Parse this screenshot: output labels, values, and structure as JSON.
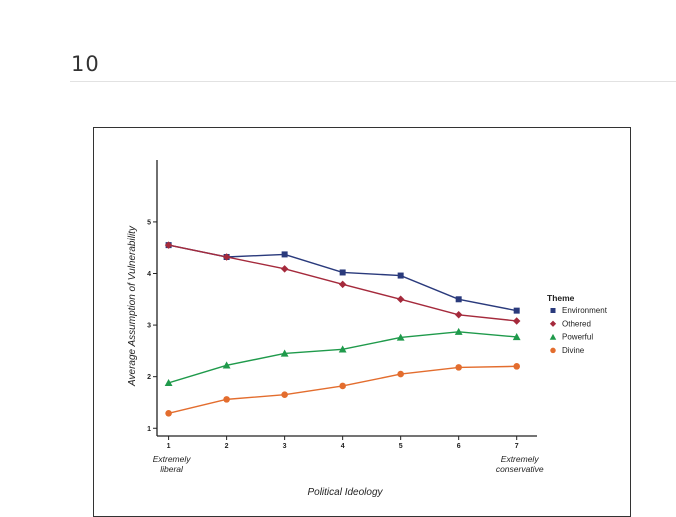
{
  "page": {
    "number": "10"
  },
  "chart_data": {
    "type": "line",
    "title": "",
    "xlabel": "Political Ideology",
    "ylabel": "Average Assumption of Vulnerability",
    "x": [
      1,
      2,
      3,
      4,
      5,
      6,
      7
    ],
    "x_tick_labels": [
      "1",
      "2",
      "3",
      "4",
      "5",
      "6",
      "7"
    ],
    "x_endpoint_labels": [
      {
        "x": 1,
        "lines": [
          "Extremely",
          "liberal"
        ]
      },
      {
        "x": 7,
        "lines": [
          "Extremely",
          "conservative"
        ]
      }
    ],
    "y_ticks": [
      1,
      2,
      3,
      4,
      5
    ],
    "xlim": [
      0.8,
      7.35
    ],
    "ylim": [
      0.85,
      6.2
    ],
    "legend_title": "Theme",
    "legend_position": "right",
    "series": [
      {
        "name": "Environment",
        "color": "#2a3a7c",
        "marker": "square",
        "values": [
          4.55,
          4.32,
          4.37,
          4.02,
          3.96,
          3.5,
          3.28
        ]
      },
      {
        "name": "Othered",
        "color": "#a52a3c",
        "marker": "diamond",
        "values": [
          4.55,
          4.32,
          4.09,
          3.79,
          3.5,
          3.2,
          3.08
        ]
      },
      {
        "name": "Powerful",
        "color": "#1f9a4b",
        "marker": "triangle",
        "values": [
          1.88,
          2.22,
          2.45,
          2.53,
          2.76,
          2.87,
          2.77
        ]
      },
      {
        "name": "Divine",
        "color": "#e36d2e",
        "marker": "circle",
        "values": [
          1.29,
          1.56,
          1.65,
          1.82,
          2.05,
          2.18,
          2.2
        ]
      }
    ]
  }
}
